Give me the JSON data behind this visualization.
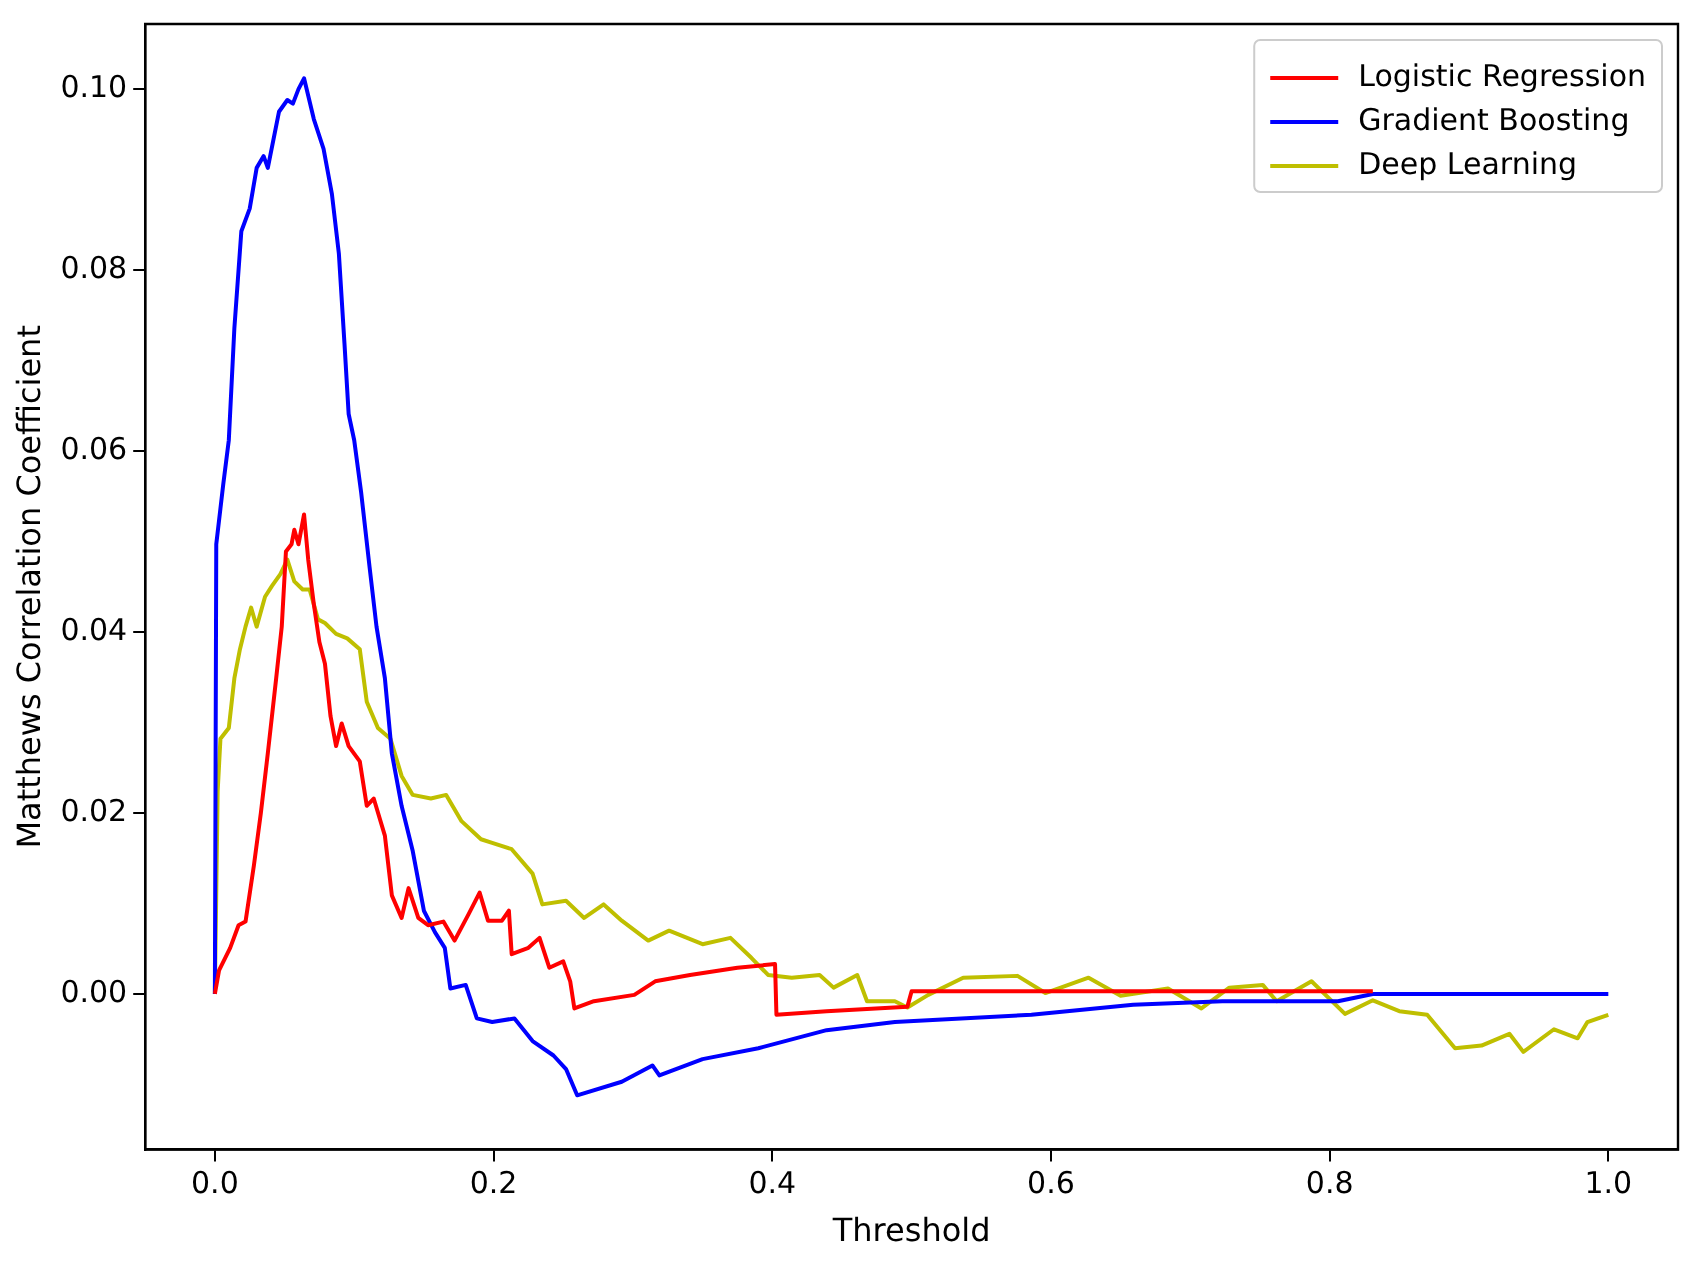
{
  "chart_data": {
    "type": "line",
    "xlabel": "Threshold",
    "ylabel": "Matthews Correlation Coefficient",
    "xlim": [
      -0.05,
      1.05
    ],
    "ylim": [
      -0.0172,
      0.1072
    ],
    "xticks": [
      {
        "value": 0,
        "label": "0.0"
      },
      {
        "value": 0.2,
        "label": "0.2"
      },
      {
        "value": 0.4,
        "label": "0.4"
      },
      {
        "value": 0.6,
        "label": "0.6"
      },
      {
        "value": 0.8,
        "label": "0.8"
      },
      {
        "value": 1,
        "label": "1.0"
      }
    ],
    "yticks": [
      {
        "value": 0,
        "label": "0.00"
      },
      {
        "value": 0.02,
        "label": "0.02"
      },
      {
        "value": 0.04,
        "label": "0.04"
      },
      {
        "value": 0.06,
        "label": "0.06"
      },
      {
        "value": 0.08,
        "label": "0.08"
      },
      {
        "value": 0.1,
        "label": "0.10"
      }
    ],
    "grid": false,
    "legend": "top right",
    "marker": "none",
    "line_style": "solid",
    "series": [
      {
        "name": "Logistic Regression",
        "color": "#ff0000",
        "x": [
          0,
          0.003,
          0.011,
          0.017,
          0.022,
          0.028,
          0.033,
          0.038,
          0.044,
          0.048,
          0.051,
          0.055,
          0.057,
          0.06,
          0.064,
          0.067,
          0.071,
          0.075,
          0.079,
          0.083,
          0.087,
          0.091,
          0.096,
          0.104,
          0.109,
          0.114,
          0.122,
          0.127,
          0.134,
          0.139,
          0.146,
          0.153,
          0.164,
          0.172,
          0.182,
          0.19,
          0.196,
          0.206,
          0.211,
          0.213,
          0.225,
          0.233,
          0.24,
          0.25,
          0.255,
          0.258,
          0.272,
          0.301,
          0.316,
          0.341,
          0.375,
          0.402,
          0.403,
          0.439,
          0.497,
          0.5,
          0.831
        ],
        "values": [
          0,
          0.0026,
          0.0051,
          0.0076,
          0.008,
          0.0142,
          0.02,
          0.0266,
          0.0349,
          0.0406,
          0.0489,
          0.0497,
          0.0513,
          0.0497,
          0.053,
          0.048,
          0.0431,
          0.0389,
          0.0365,
          0.0307,
          0.0274,
          0.0299,
          0.0274,
          0.0257,
          0.0208,
          0.0216,
          0.0175,
          0.0109,
          0.0084,
          0.0117,
          0.0084,
          0.0076,
          0.008,
          0.0059,
          0.0088,
          0.0112,
          0.0081,
          0.0081,
          0.0092,
          0.0044,
          0.0051,
          0.0062,
          0.0029,
          0.0036,
          0.0014,
          -0.0016,
          -0.0008,
          -0.0001,
          0.0014,
          0.0021,
          0.0029,
          0.0033,
          -0.0023,
          -0.0019,
          -0.0014,
          0.0003,
          0.0003
        ]
      },
      {
        "name": "Gradient Boosting",
        "color": "#0000ff",
        "x": [
          0,
          0.001,
          0.006,
          0.01,
          0.014,
          0.019,
          0.025,
          0.03,
          0.035,
          0.038,
          0.046,
          0.052,
          0.056,
          0.06,
          0.064,
          0.071,
          0.078,
          0.084,
          0.089,
          0.093,
          0.096,
          0.1,
          0.105,
          0.111,
          0.116,
          0.122,
          0.127,
          0.134,
          0.142,
          0.15,
          0.158,
          0.165,
          0.169,
          0.18,
          0.188,
          0.199,
          0.215,
          0.228,
          0.243,
          0.252,
          0.26,
          0.292,
          0.314,
          0.319,
          0.35,
          0.39,
          0.439,
          0.488,
          0.586,
          0.659,
          0.723,
          0.806,
          0.831,
          1.0
        ],
        "values": [
          0,
          0.0497,
          0.0563,
          0.0612,
          0.0736,
          0.0843,
          0.0868,
          0.0913,
          0.0926,
          0.0913,
          0.0975,
          0.0988,
          0.0984,
          0.1,
          0.1012,
          0.0967,
          0.0934,
          0.0884,
          0.0818,
          0.0719,
          0.0641,
          0.0612,
          0.0554,
          0.0472,
          0.0406,
          0.0349,
          0.0266,
          0.0208,
          0.0158,
          0.0092,
          0.0068,
          0.0051,
          0.0006,
          0.001,
          -0.0027,
          -0.0031,
          -0.0027,
          -0.0052,
          -0.0068,
          -0.0083,
          -0.0112,
          -0.0097,
          -0.0079,
          -0.009,
          -0.0072,
          -0.006,
          -0.004,
          -0.0031,
          -0.0023,
          -0.0012,
          -0.0008,
          -0.0008,
          0,
          0
        ]
      },
      {
        "name": "Deep Learning",
        "color": "#bfbf00",
        "x": [
          0,
          0.002,
          0.004,
          0.01,
          0.014,
          0.018,
          0.022,
          0.026,
          0.03,
          0.036,
          0.041,
          0.047,
          0.052,
          0.057,
          0.063,
          0.068,
          0.074,
          0.079,
          0.087,
          0.095,
          0.104,
          0.109,
          0.117,
          0.126,
          0.134,
          0.142,
          0.155,
          0.166,
          0.177,
          0.191,
          0.199,
          0.213,
          0.228,
          0.235,
          0.252,
          0.265,
          0.279,
          0.292,
          0.311,
          0.326,
          0.35,
          0.37,
          0.385,
          0.397,
          0.414,
          0.434,
          0.444,
          0.461,
          0.468,
          0.488,
          0.497,
          0.512,
          0.537,
          0.576,
          0.596,
          0.627,
          0.65,
          0.684,
          0.708,
          0.728,
          0.752,
          0.762,
          0.787,
          0.811,
          0.831,
          0.85,
          0.87,
          0.89,
          0.909,
          0.929,
          0.939,
          0.961,
          0.978,
          0.985,
          1.0
        ],
        "values": [
          0,
          0.0224,
          0.0282,
          0.0294,
          0.0349,
          0.0381,
          0.0406,
          0.0427,
          0.0406,
          0.0439,
          0.0451,
          0.0464,
          0.048,
          0.0456,
          0.0447,
          0.0447,
          0.0414,
          0.041,
          0.0398,
          0.0393,
          0.0381,
          0.0323,
          0.0294,
          0.0282,
          0.0241,
          0.022,
          0.0216,
          0.022,
          0.0191,
          0.0171,
          0.0167,
          0.016,
          0.0133,
          0.0099,
          0.0103,
          0.0084,
          0.0099,
          0.0081,
          0.0059,
          0.007,
          0.0055,
          0.0062,
          0.004,
          0.0021,
          0.0018,
          0.0021,
          0.0007,
          0.0021,
          -0.0008,
          -0.0008,
          -0.0015,
          -0.0001,
          0.0018,
          0.002,
          0.0001,
          0.0018,
          -0.0002,
          0.0006,
          -0.0016,
          0.0007,
          0.001,
          -0.0008,
          0.0014,
          -0.0022,
          -0.0007,
          -0.0019,
          -0.0023,
          -0.006,
          -0.0057,
          -0.0044,
          -0.0064,
          -0.0039,
          -0.0049,
          -0.0031,
          -0.0023
        ]
      }
    ]
  }
}
